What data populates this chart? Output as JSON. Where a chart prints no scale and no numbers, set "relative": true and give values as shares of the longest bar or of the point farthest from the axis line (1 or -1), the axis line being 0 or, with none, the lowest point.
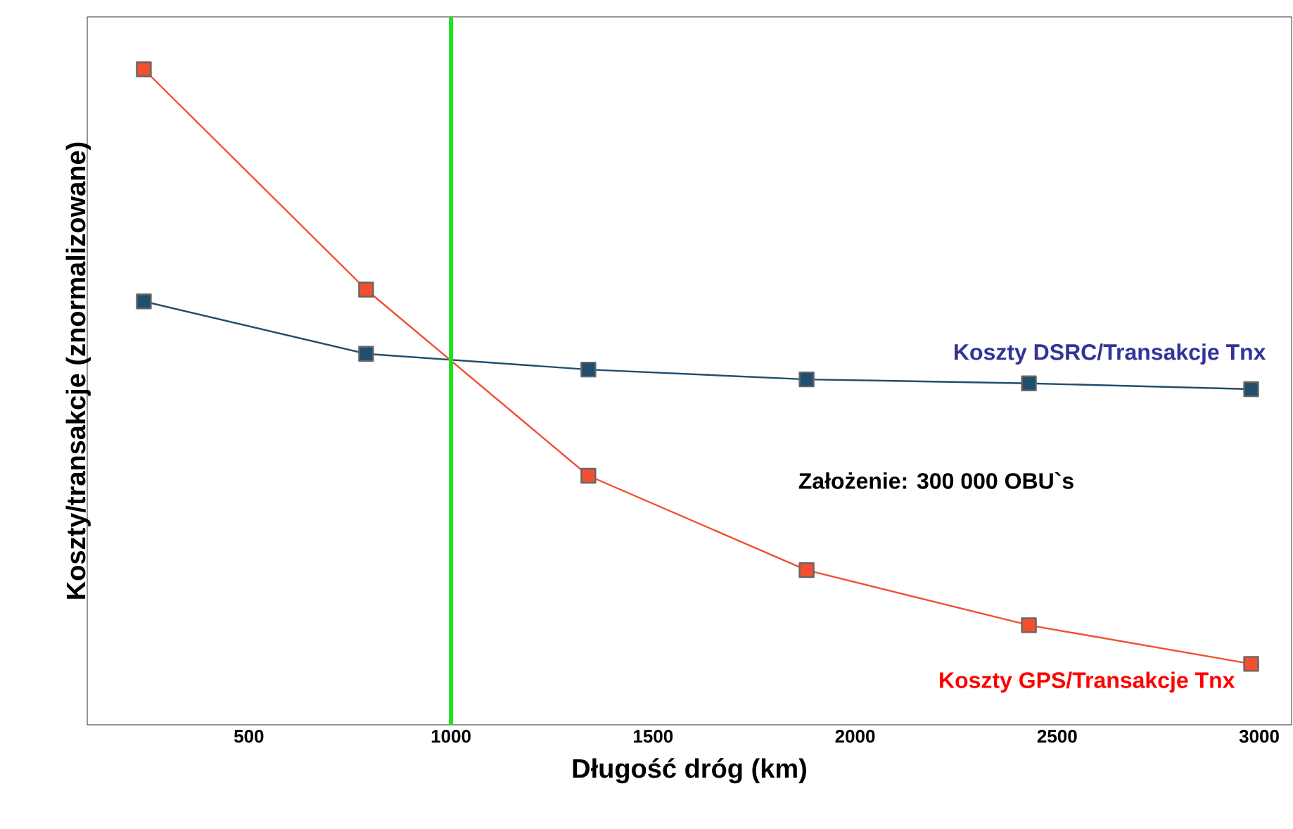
{
  "chart_data": {
    "type": "line",
    "relative": true,
    "xlabel": "Długość dróg (km)",
    "ylabel": "Koszty/transakcje (znormalizowane)",
    "xlim": [
      100,
      3080
    ],
    "xticks": [
      500,
      1000,
      1500,
      2000,
      2500,
      3000
    ],
    "marker": "square",
    "grid": false,
    "series": [
      {
        "name": "Koszty DSRC/Transakcje Tnx",
        "color": "#1f4e6e",
        "x": [
          240,
          790,
          1340,
          1880,
          2430,
          2980
        ],
        "values": [
          0.646,
          0.566,
          0.542,
          0.527,
          0.521,
          0.512
        ]
      },
      {
        "name": "Koszty GPS/Transakcje Tnx",
        "color": "#f05030",
        "x": [
          240,
          790,
          1340,
          1880,
          2430,
          2980
        ],
        "values": [
          1,
          0.664,
          0.38,
          0.236,
          0.152,
          0.093
        ]
      }
    ],
    "ref_lines": [
      {
        "axis": "x",
        "value": 1000,
        "color": "#22e01e"
      }
    ],
    "annotations": [
      "Założenie: 300 000 OBU`s"
    ]
  }
}
